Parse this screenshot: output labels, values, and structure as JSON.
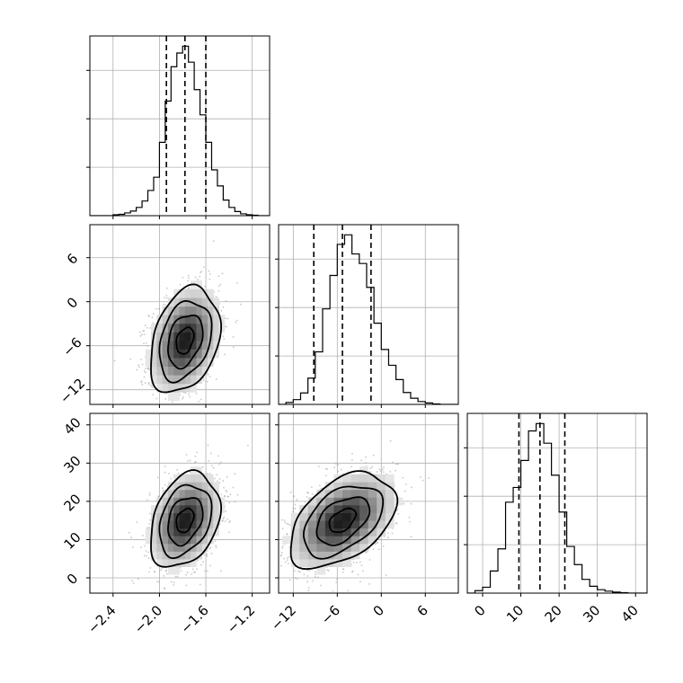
{
  "chart_data": {
    "type": "corner",
    "colors": {
      "line": "#000000",
      "grid": "#b0b0b0",
      "scatter": "#9a9a9a",
      "density": "#000000"
    },
    "grid": true,
    "parameters": [
      {
        "range": [
          -2.6,
          -1.05
        ],
        "ticks": [
          -2.4,
          -2.0,
          -1.6,
          -1.2
        ],
        "tick_labels": [
          "−2.4",
          "−2.0",
          "−1.6",
          "−1.2"
        ]
      },
      {
        "range": [
          -14,
          10.5
        ],
        "ticks": [
          -12,
          -6,
          0,
          6
        ],
        "tick_labels": [
          "−12",
          "−6",
          "0",
          "6"
        ]
      },
      {
        "range": [
          -4,
          43
        ],
        "ticks": [
          0,
          10,
          20,
          30,
          40
        ],
        "tick_labels": [
          "0",
          "10",
          "20",
          "30",
          "40"
        ]
      }
    ],
    "histograms": [
      {
        "param": 0,
        "edges": [
          -2.6,
          -2.55,
          -2.5,
          -2.45,
          -2.4,
          -2.35,
          -2.3,
          -2.25,
          -2.2,
          -2.15,
          -2.1,
          -2.05,
          -2.0,
          -1.95,
          -1.9,
          -1.85,
          -1.8,
          -1.75,
          -1.7,
          -1.65,
          -1.6,
          -1.55,
          -1.5,
          -1.45,
          -1.4,
          -1.35,
          -1.3,
          -1.25,
          -1.2,
          -1.15,
          -1.1,
          -1.05
        ],
        "counts": [
          0,
          0,
          0,
          0,
          2,
          3,
          6,
          10,
          18,
          32,
          55,
          84,
          160,
          250,
          325,
          355,
          370,
          335,
          275,
          220,
          160,
          100,
          65,
          34,
          18,
          9,
          4,
          2,
          1,
          0,
          0
        ],
        "quantiles": [
          -1.94,
          -1.78,
          -1.6
        ]
      },
      {
        "param": 1,
        "edges": [
          -14,
          -13,
          -12,
          -11,
          -10,
          -9,
          -8,
          -7,
          -6,
          -5,
          -4,
          -3,
          -2,
          -1,
          0,
          1,
          2,
          3,
          4,
          5,
          6,
          7,
          8,
          9,
          10,
          10.5
        ],
        "counts": [
          0,
          4,
          10,
          24,
          55,
          110,
          200,
          270,
          335,
          355,
          315,
          295,
          245,
          170,
          115,
          82,
          52,
          25,
          13,
          6,
          3,
          1,
          0,
          0,
          0
        ],
        "quantiles": [
          -9.2,
          -5.3,
          -1.4
        ]
      },
      {
        "param": 2,
        "edges": [
          -4,
          -2,
          0,
          2,
          4,
          6,
          8,
          10,
          12,
          14,
          16,
          18,
          20,
          22,
          24,
          26,
          28,
          30,
          32,
          34,
          36,
          38,
          40,
          42,
          43
        ],
        "counts": [
          0,
          5,
          12,
          45,
          90,
          185,
          215,
          270,
          330,
          345,
          305,
          240,
          165,
          95,
          58,
          28,
          14,
          7,
          4,
          2,
          1,
          0,
          0,
          0
        ],
        "quantiles": [
          9.5,
          15.0,
          21.5
        ]
      }
    ],
    "pairs": [
      {
        "x": 0,
        "y": 1,
        "mean": [
          -1.78,
          -5.3
        ],
        "sd": [
          0.15,
          3.6
        ],
        "rho": 0.3
      },
      {
        "x": 0,
        "y": 2,
        "mean": [
          -1.78,
          15.0
        ],
        "sd": [
          0.15,
          6.2
        ],
        "rho": 0.3
      },
      {
        "x": 1,
        "y": 2,
        "mean": [
          -5.3,
          15.0
        ],
        "sd": [
          3.6,
          6.2
        ],
        "rho": 0.45
      }
    ],
    "contour_levels_sigma": [
      0.5,
      1.0,
      1.5,
      2.0
    ],
    "scatter_points_per_panel": 1400
  }
}
